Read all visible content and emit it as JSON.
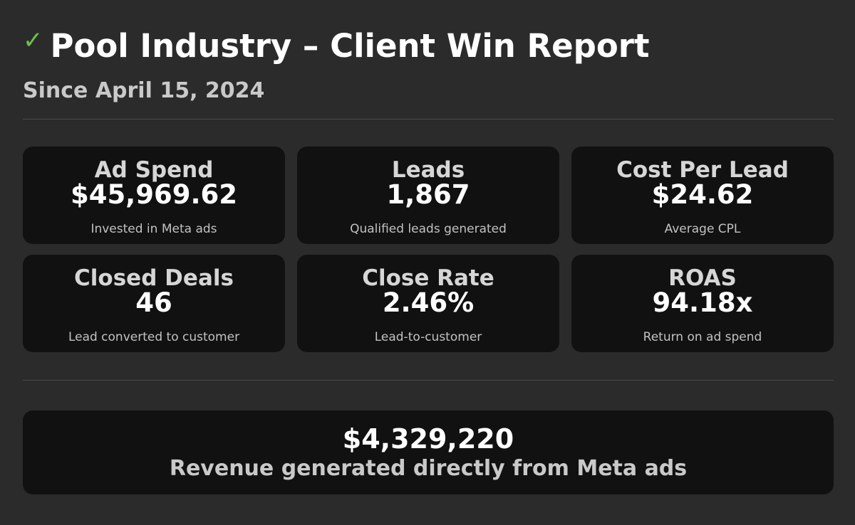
{
  "header": {
    "check_icon": "✓",
    "title": "Pool Industry – Client Win Report",
    "subtitle": "Since April 15, 2024"
  },
  "metrics": [
    {
      "label": "Ad Spend",
      "value": "$45,969.62",
      "caption": "Invested in Meta ads"
    },
    {
      "label": "Leads",
      "value": "1,867",
      "caption": "Qualified leads generated"
    },
    {
      "label": "Cost Per Lead",
      "value": "$24.62",
      "caption": "Average CPL"
    },
    {
      "label": "Closed Deals",
      "value": "46",
      "caption": "Lead converted to customer"
    },
    {
      "label": "Close Rate",
      "value": "2.46%",
      "caption": "Lead-to-customer"
    },
    {
      "label": "ROAS",
      "value": "94.18x",
      "caption": "Return on ad spend"
    }
  ],
  "revenue": {
    "value": "$4,329,220",
    "caption": "Revenue generated directly from Meta ads"
  },
  "colors": {
    "background": "#2b2b2b",
    "card": "#111111",
    "accent_check": "#6cc24a"
  }
}
